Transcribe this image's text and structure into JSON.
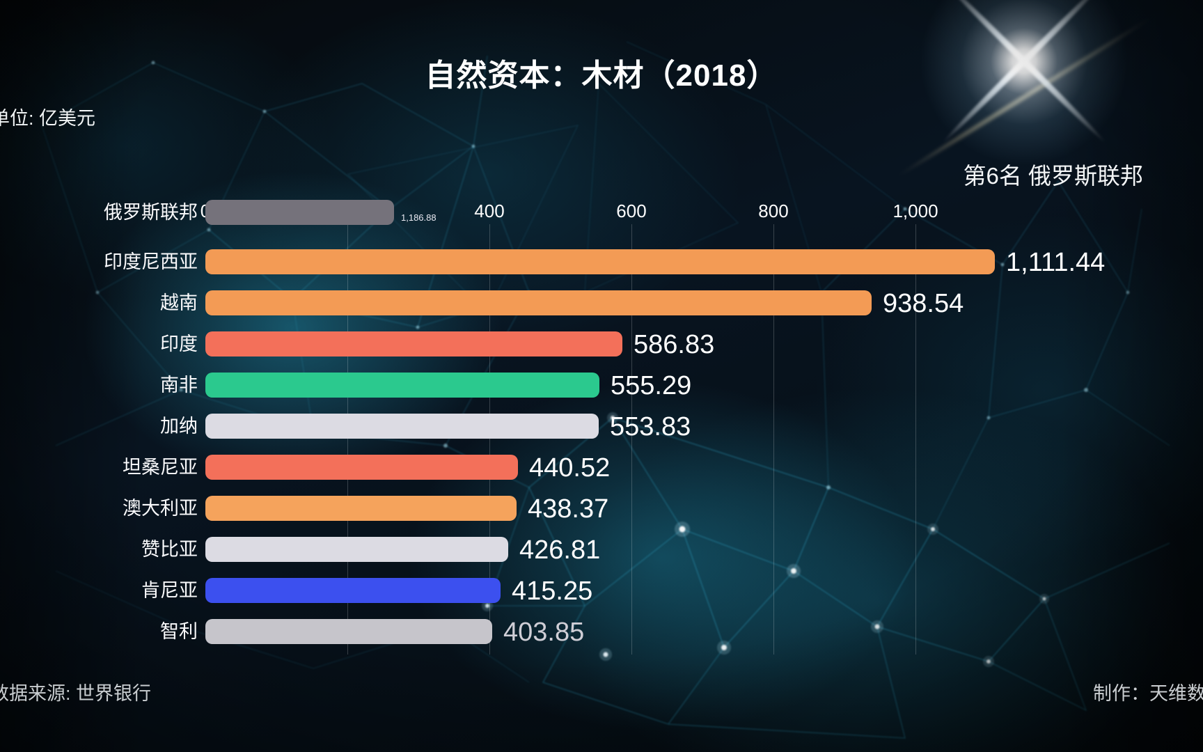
{
  "page": {
    "title": "自然资本：木材（2018）",
    "unit_label": "单位: 亿美元",
    "rank_badge": "第6名 俄罗斯联邦",
    "source": "数据来源: 世界银行",
    "credit": "制作：天维数"
  },
  "chart_data": {
    "type": "bar",
    "orientation": "horizontal",
    "title": "自然资本：木材（2018）",
    "unit": "亿美元",
    "year": "2018",
    "highlight_rank": "第6名 俄罗斯联邦",
    "x_axis": {
      "ticks": [
        {
          "label": "0",
          "value": 0
        },
        {
          "label": "400",
          "value": 400
        },
        {
          "label": "600",
          "value": 600
        },
        {
          "label": "800",
          "value": 800
        },
        {
          "label": "1,000",
          "value": 1000
        }
      ],
      "gridline_values": [
        200,
        400,
        600,
        800,
        1000
      ]
    },
    "bars": [
      {
        "country": "俄罗斯联邦",
        "value": 1186.88,
        "value_label": "1,186.88",
        "animated_bar_value": 266,
        "color": "#75727b",
        "small_value_label": true
      },
      {
        "country": "印度尼西亚",
        "value": 1111.44,
        "value_label": "1,111.44",
        "color": "#f39b55"
      },
      {
        "country": "越南",
        "value": 938.54,
        "value_label": "938.54",
        "color": "#f39b55"
      },
      {
        "country": "印度",
        "value": 586.83,
        "value_label": "586.83",
        "color": "#f3705a"
      },
      {
        "country": "南非",
        "value": 555.29,
        "value_label": "555.29",
        "color": "#2bc98e"
      },
      {
        "country": "加纳",
        "value": 553.83,
        "value_label": "553.83",
        "color": "#dcdbe3"
      },
      {
        "country": "坦桑尼亚",
        "value": 440.52,
        "value_label": "440.52",
        "color": "#f3705a"
      },
      {
        "country": "澳大利亚",
        "value": 438.37,
        "value_label": "438.37",
        "color": "#f5a35c"
      },
      {
        "country": "赞比亚",
        "value": 426.81,
        "value_label": "426.81",
        "color": "#dcdbe3"
      },
      {
        "country": "肯尼亚",
        "value": 415.25,
        "value_label": "415.25",
        "color": "#3c50ef"
      },
      {
        "country": "智利",
        "value": 403.85,
        "value_label": "403.85",
        "color": "#c6c5cb",
        "value_label_color": "#cfced6"
      }
    ],
    "source": "数据来源: 世界银行",
    "credit": "制作：天维数"
  }
}
